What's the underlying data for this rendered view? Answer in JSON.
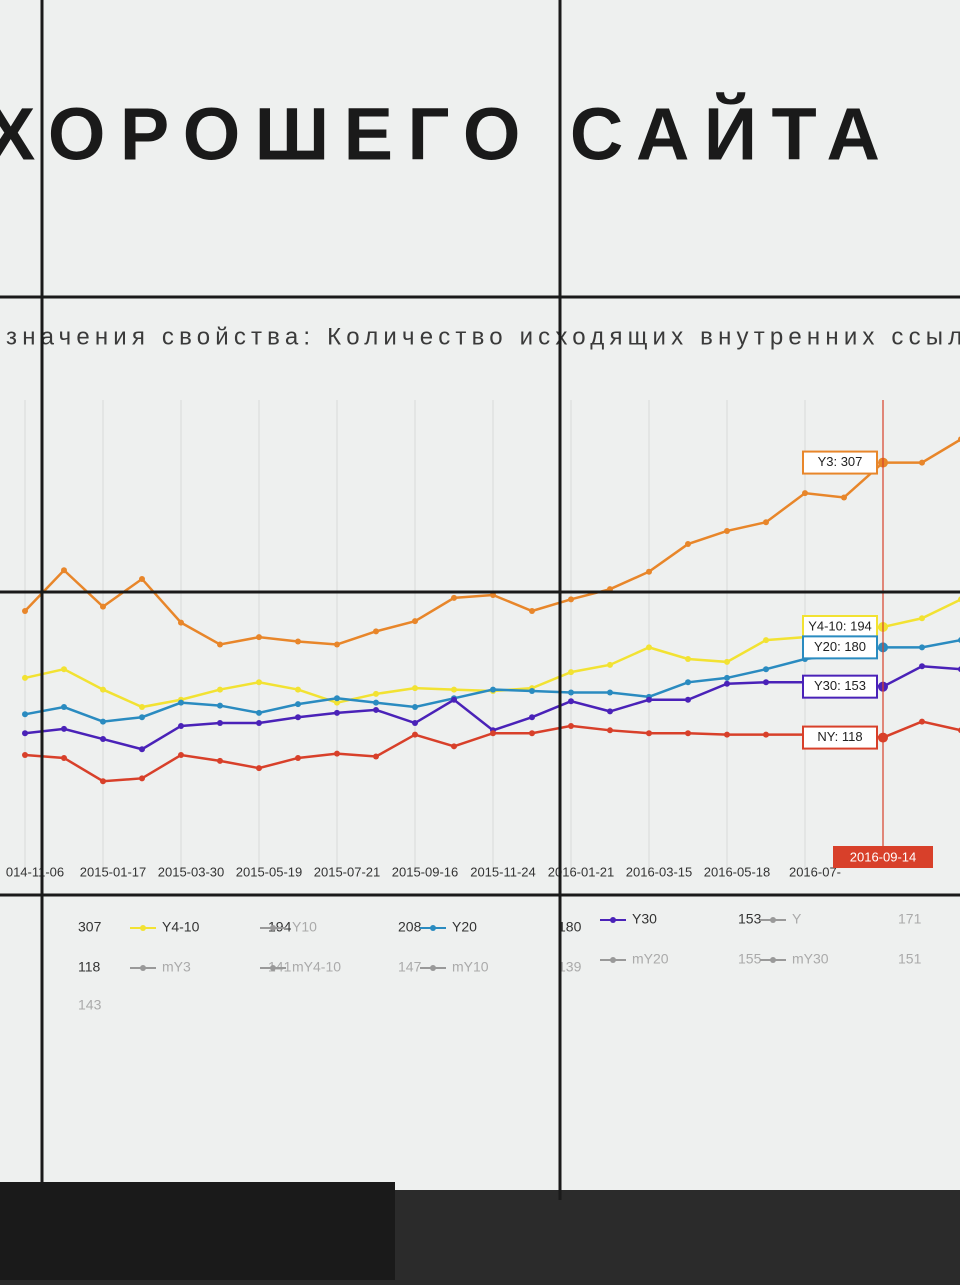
{
  "title": "ХОРОШЕГО САЙТА",
  "chart_data": {
    "type": "line",
    "subtitle": "значения свойства: Количество исходящих внутренних ссыло",
    "categories": [
      "014-11-06",
      null,
      "2015-01-17",
      null,
      "2015-03-30",
      null,
      "2015-05-19",
      null,
      "2015-07-21",
      null,
      "2015-09-16",
      null,
      "2015-11-24",
      null,
      "2016-01-21",
      null,
      "2016-03-15",
      null,
      "2016-05-18",
      null,
      "2016-07-",
      null,
      "2016-09-14",
      null,
      null
    ],
    "crosshair": 22,
    "ylim": [
      27,
      350
    ],
    "grid": "x",
    "series": [
      {
        "name": "Y3",
        "color": "#e8862a",
        "tooltip": "Y3: 307",
        "values": [
          205,
          233,
          208,
          227,
          197,
          182,
          187,
          184,
          182,
          191,
          198,
          214,
          216,
          205,
          213,
          220,
          232,
          251,
          260,
          266,
          286,
          283,
          307,
          307,
          323
        ]
      },
      {
        "name": "Y4-10",
        "color": "#f2e232",
        "tooltip": "Y4-10: 194",
        "values": [
          159,
          165,
          151,
          139,
          144,
          151,
          156,
          151,
          142,
          148,
          152,
          151,
          150,
          152,
          163,
          168,
          180,
          172,
          170,
          185,
          187,
          192,
          194,
          200,
          213
        ]
      },
      {
        "name": "Y20",
        "color": "#2a8bc0",
        "tooltip": "Y20: 180",
        "values": [
          134,
          139,
          129,
          132,
          142,
          140,
          135,
          141,
          145,
          142,
          139,
          145,
          151,
          150,
          149,
          149,
          146,
          156,
          159,
          165,
          172,
          175,
          180,
          180,
          185
        ]
      },
      {
        "name": "Y30",
        "color": "#4a22b8",
        "tooltip": "Y30: 153",
        "values": [
          121,
          124,
          117,
          110,
          126,
          128,
          128,
          132,
          135,
          137,
          128,
          144,
          123,
          132,
          143,
          136,
          144,
          144,
          155,
          156,
          156,
          156,
          153,
          167,
          165
        ]
      },
      {
        "name": "NY",
        "color": "#d8402a",
        "tooltip": "NY: 118",
        "values": [
          106,
          104,
          88,
          90,
          106,
          102,
          97,
          104,
          107,
          105,
          120,
          112,
          121,
          121,
          126,
          123,
          121,
          121,
          120,
          120,
          120,
          120,
          118,
          129,
          123
        ]
      }
    ],
    "legend": [
      [
        {
          "value": 307
        },
        {
          "name": "Y4-10",
          "color": "#f2e232",
          "value": 194
        },
        {
          "name": "Y10",
          "color": "#999999",
          "value": 208
        },
        {
          "name": "Y20",
          "color": "#2a8bc0",
          "value": 180
        },
        {
          "name": "Y30",
          "color": "#4a22b8",
          "value": 153
        },
        {
          "name": "Y",
          "color": "#999999",
          "value": 171
        }
      ],
      [
        {
          "value": 118
        },
        {
          "name": "mY3",
          "color": "#999999",
          "value": 141
        },
        {
          "name": "mY4-10",
          "color": "#999999",
          "value": 147
        },
        {
          "name": "mY10",
          "color": "#999999",
          "value": 139
        },
        {
          "name": "mY20",
          "color": "#999999",
          "value": 155
        },
        {
          "name": "mY30",
          "color": "#999999",
          "value": 151
        }
      ],
      [
        {
          "value": 143
        }
      ]
    ]
  }
}
